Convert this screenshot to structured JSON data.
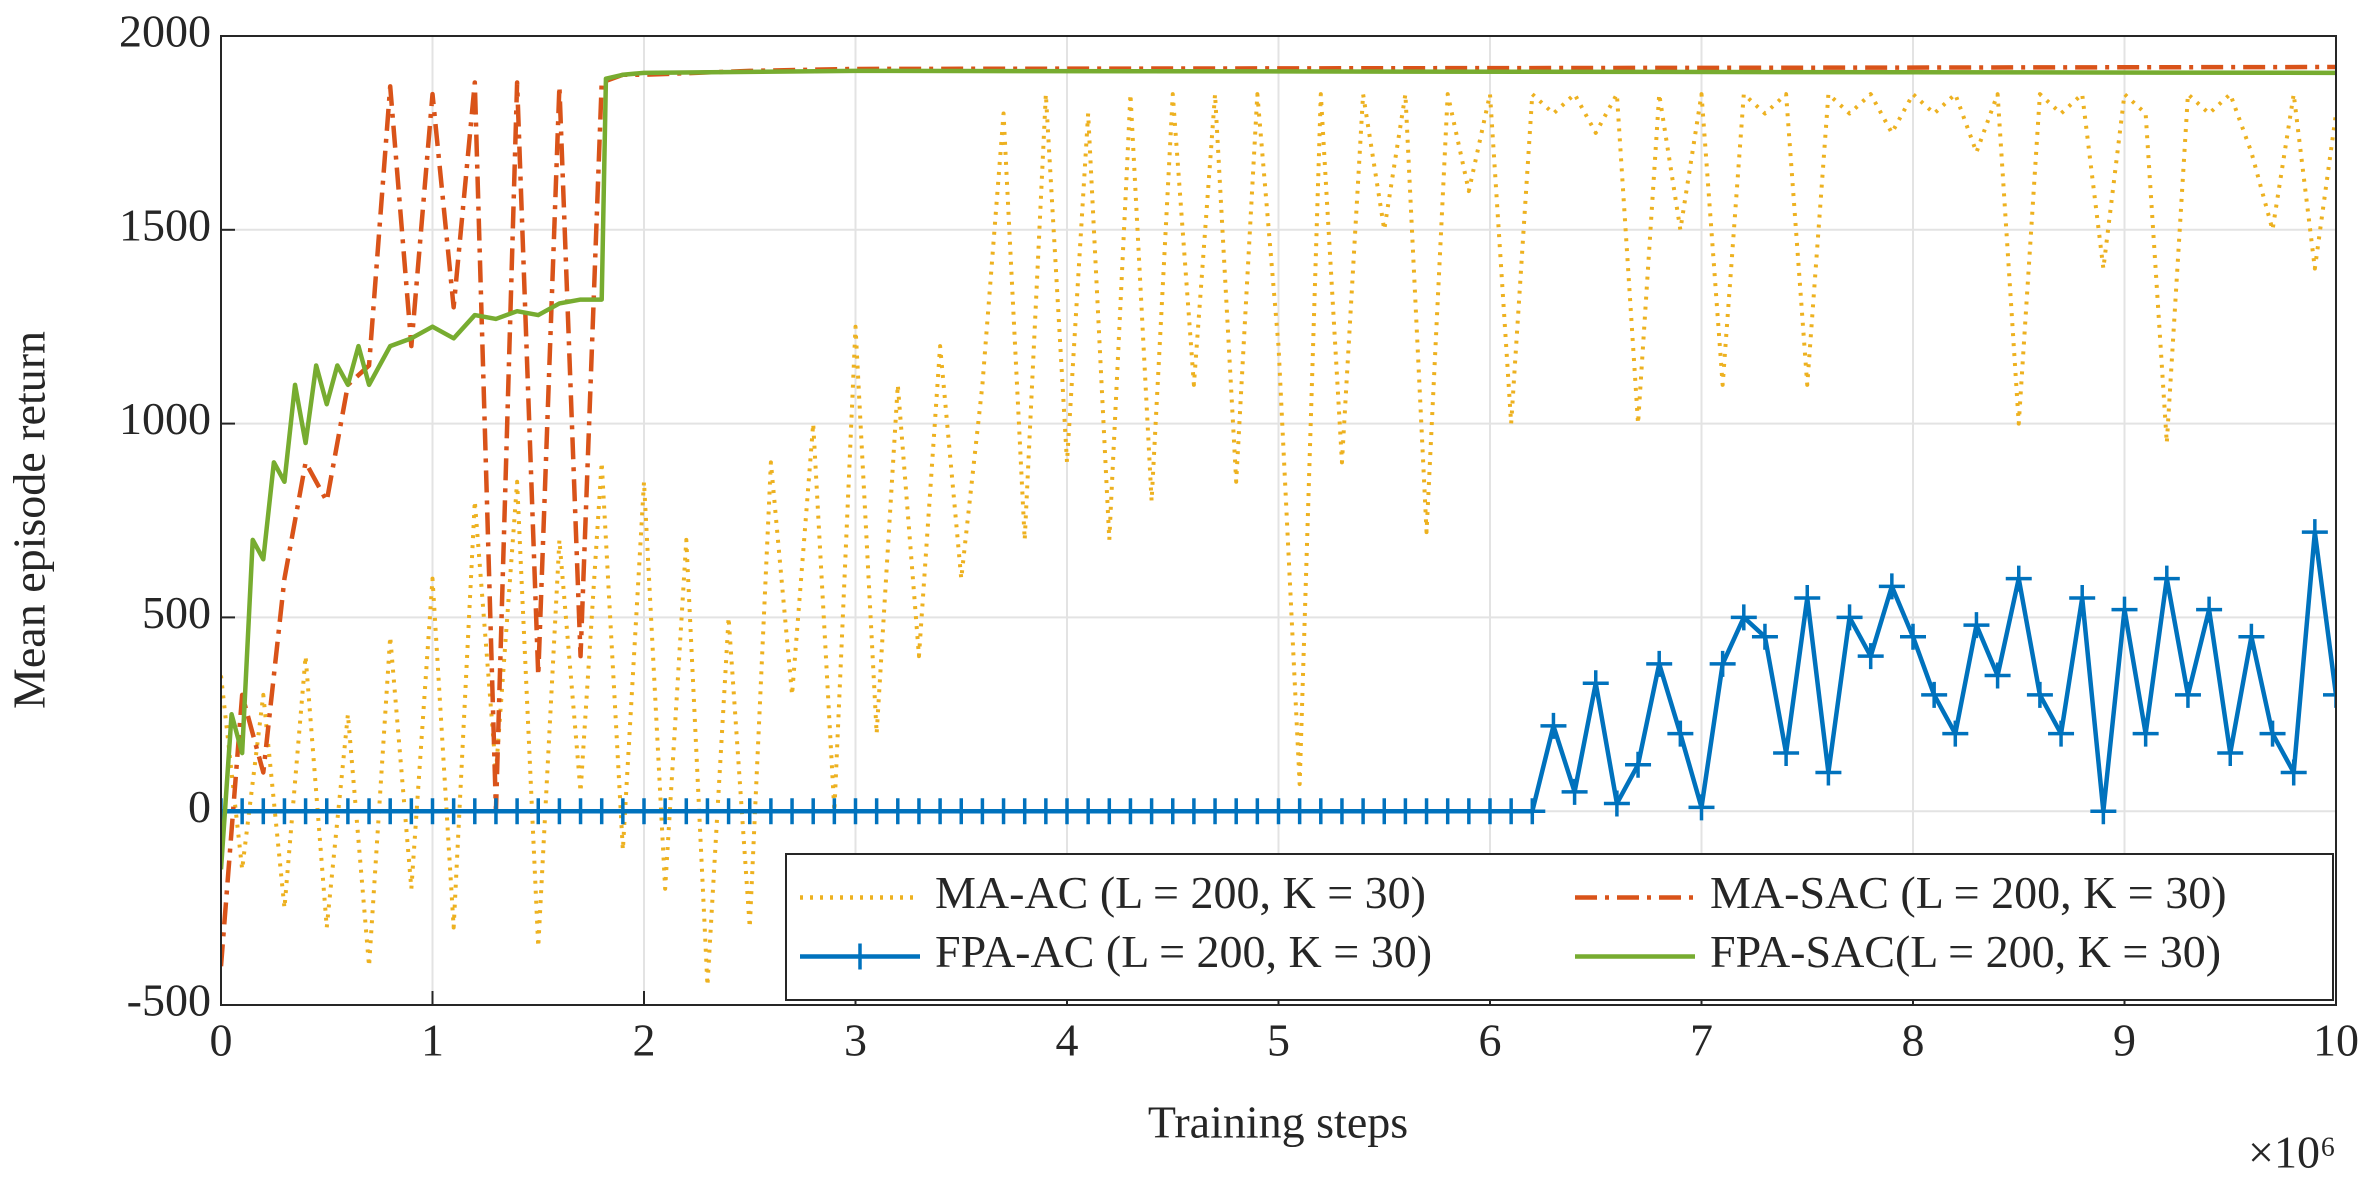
{
  "chart_data": {
    "type": "line",
    "xlabel": "Training steps",
    "ylabel": "Mean episode return",
    "x_multiplier": "×10⁶",
    "xlim": [
      0,
      10
    ],
    "xticks": [
      0,
      1,
      2,
      3,
      4,
      5,
      6,
      7,
      8,
      9,
      10
    ],
    "ylim": [
      -500,
      2000
    ],
    "yticks": [
      -500,
      0,
      500,
      1000,
      1500,
      2000
    ],
    "grid": true,
    "legend": "lower right",
    "legend_columns": 2,
    "series": [
      {
        "name": "MA-AC (L = 200, K = 30)",
        "color": "#EDB120",
        "linestyle": "dotted",
        "x": [
          0,
          0.1,
          0.2,
          0.3,
          0.4,
          0.5,
          0.6,
          0.7,
          0.8,
          0.9,
          1,
          1.1,
          1.2,
          1.3,
          1.4,
          1.5,
          1.6,
          1.7,
          1.8,
          1.9,
          2,
          2.1,
          2.2,
          2.3,
          2.4,
          2.5,
          2.6,
          2.7,
          2.8,
          2.9,
          3,
          3.1,
          3.2,
          3.3,
          3.4,
          3.5,
          3.6,
          3.7,
          3.8,
          3.9,
          4,
          4.1,
          4.2,
          4.3,
          4.4,
          4.5,
          4.6,
          4.7,
          4.8,
          4.9,
          5,
          5.1,
          5.2,
          5.3,
          5.4,
          5.5,
          5.6,
          5.7,
          5.8,
          5.9,
          6,
          6.1,
          6.2,
          6.3,
          6.4,
          6.5,
          6.6,
          6.7,
          6.8,
          6.9,
          7,
          7.1,
          7.2,
          7.3,
          7.4,
          7.5,
          7.6,
          7.7,
          7.8,
          7.9,
          8,
          8.1,
          8.2,
          8.3,
          8.4,
          8.5,
          8.6,
          8.7,
          8.8,
          8.9,
          9,
          9.1,
          9.2,
          9.3,
          9.4,
          9.5,
          9.6,
          9.7,
          9.8,
          9.9,
          10
        ],
        "values": [
          350,
          -150,
          300,
          -250,
          400,
          -300,
          250,
          -400,
          450,
          -200,
          600,
          -300,
          800,
          100,
          850,
          -350,
          700,
          50,
          900,
          -100,
          850,
          -200,
          700,
          -450,
          500,
          -300,
          900,
          300,
          1000,
          0,
          1250,
          200,
          1100,
          400,
          1200,
          600,
          1100,
          1800,
          700,
          1850,
          900,
          1800,
          700,
          1850,
          800,
          1850,
          1100,
          1850,
          850,
          1850,
          1200,
          70,
          1850,
          900,
          1850,
          1500,
          1850,
          720,
          1850,
          1600,
          1850,
          1000,
          1850,
          1800,
          1850,
          1750,
          1850,
          1000,
          1850,
          1500,
          1850,
          1100,
          1850,
          1800,
          1850,
          1100,
          1850,
          1800,
          1850,
          1750,
          1850,
          1800,
          1850,
          1700,
          1850,
          1000,
          1850,
          1800,
          1850,
          1400,
          1850,
          1800,
          950,
          1850,
          1800,
          1850,
          1700,
          1500,
          1850,
          1400,
          1800
        ]
      },
      {
        "name": "MA-SAC (L = 200, K = 30)",
        "color": "#D95319",
        "linestyle": "dashdot",
        "x": [
          0,
          0.1,
          0.2,
          0.3,
          0.4,
          0.5,
          0.6,
          0.7,
          0.8,
          0.9,
          1,
          1.1,
          1.2,
          1.3,
          1.4,
          1.5,
          1.6,
          1.7,
          1.8,
          1.9,
          2,
          2.5,
          3,
          10
        ],
        "values": [
          -400,
          300,
          100,
          600,
          900,
          800,
          1100,
          1150,
          1870,
          1200,
          1850,
          1300,
          1880,
          0,
          1880,
          350,
          1870,
          400,
          1880,
          1900,
          1900,
          1910,
          1915,
          1920
        ]
      },
      {
        "name": "FPA-AC (L = 200, K = 30)",
        "color": "#0072BD",
        "linestyle": "solid",
        "marker": "+",
        "x": [
          0,
          0.1,
          0.2,
          0.3,
          0.4,
          0.5,
          0.6,
          0.7,
          0.8,
          0.9,
          1,
          1.1,
          1.2,
          1.3,
          1.4,
          1.5,
          1.6,
          1.7,
          1.8,
          1.9,
          2,
          2.1,
          2.2,
          2.3,
          2.4,
          2.5,
          2.6,
          2.7,
          2.8,
          2.9,
          3,
          3.1,
          3.2,
          3.3,
          3.4,
          3.5,
          3.6,
          3.7,
          3.8,
          3.9,
          4,
          4.1,
          4.2,
          4.3,
          4.4,
          4.5,
          4.6,
          4.7,
          4.8,
          4.9,
          5,
          5.1,
          5.2,
          5.3,
          5.4,
          5.5,
          5.6,
          5.7,
          5.8,
          5.9,
          6,
          6.1,
          6.2,
          6.3,
          6.4,
          6.5,
          6.6,
          6.7,
          6.8,
          6.9,
          7,
          7.1,
          7.2,
          7.3,
          7.4,
          7.5,
          7.6,
          7.7,
          7.8,
          7.9,
          8,
          8.1,
          8.2,
          8.3,
          8.4,
          8.5,
          8.6,
          8.7,
          8.8,
          8.9,
          9,
          9.1,
          9.2,
          9.3,
          9.4,
          9.5,
          9.6,
          9.7,
          9.8,
          9.9,
          10
        ],
        "values": [
          0,
          0,
          0,
          0,
          0,
          0,
          0,
          0,
          0,
          0,
          0,
          0,
          0,
          0,
          0,
          0,
          0,
          0,
          0,
          0,
          0,
          0,
          0,
          0,
          0,
          0,
          0,
          0,
          0,
          0,
          0,
          0,
          0,
          0,
          0,
          0,
          0,
          0,
          0,
          0,
          0,
          0,
          0,
          0,
          0,
          0,
          0,
          0,
          0,
          0,
          0,
          0,
          0,
          0,
          0,
          0,
          0,
          0,
          0,
          0,
          0,
          0,
          0,
          220,
          50,
          330,
          20,
          120,
          380,
          200,
          10,
          380,
          500,
          450,
          150,
          550,
          100,
          500,
          400,
          580,
          450,
          300,
          200,
          480,
          350,
          600,
          300,
          200,
          550,
          0,
          520,
          200,
          600,
          300,
          520,
          150,
          450,
          200,
          100,
          720,
          300
        ]
      },
      {
        "name": "FPA-SAC(L = 200, K = 30)",
        "color": "#77AC30",
        "linestyle": "solid",
        "x": [
          0,
          0.05,
          0.1,
          0.15,
          0.2,
          0.25,
          0.3,
          0.35,
          0.4,
          0.45,
          0.5,
          0.55,
          0.6,
          0.65,
          0.7,
          0.8,
          0.9,
          1,
          1.1,
          1.2,
          1.3,
          1.4,
          1.5,
          1.6,
          1.7,
          1.8,
          1.82,
          1.9,
          2,
          3,
          10
        ],
        "values": [
          -150,
          250,
          150,
          700,
          650,
          900,
          850,
          1100,
          950,
          1150,
          1050,
          1150,
          1100,
          1200,
          1100,
          1200,
          1220,
          1250,
          1220,
          1280,
          1270,
          1290,
          1280,
          1310,
          1320,
          1320,
          1890,
          1900,
          1905,
          1910,
          1905
        ]
      }
    ]
  }
}
